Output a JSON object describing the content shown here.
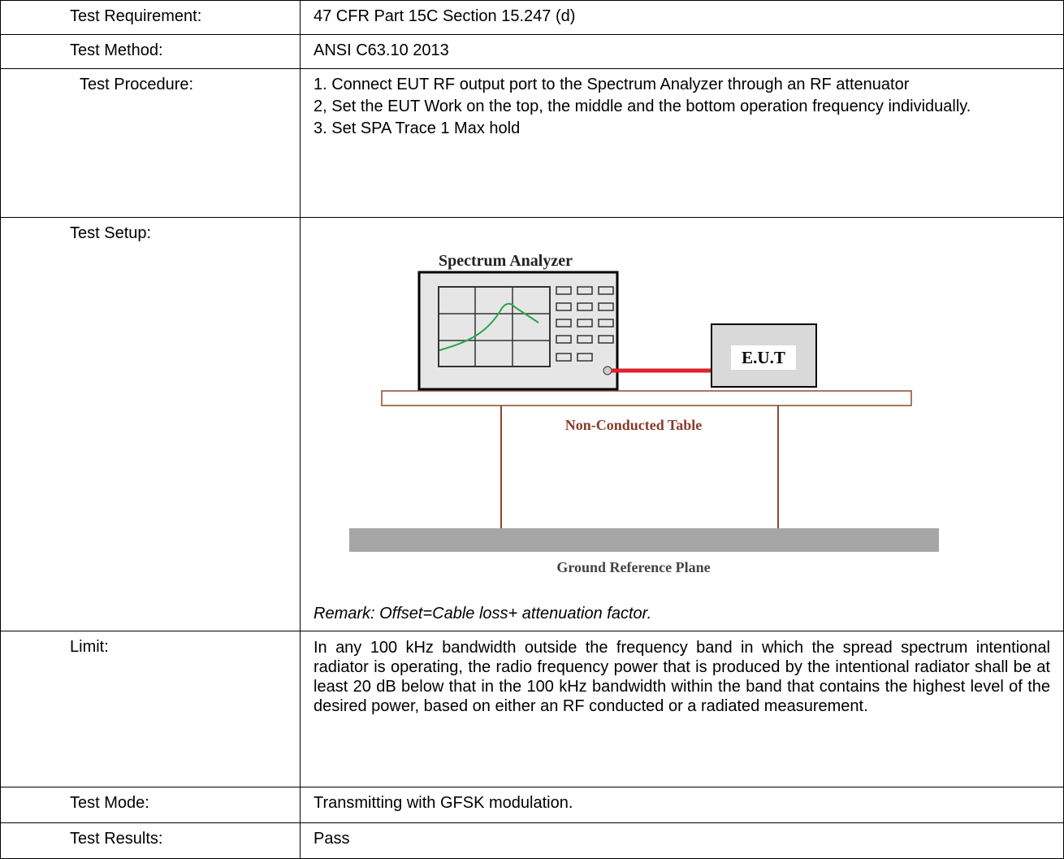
{
  "table": {
    "rows": [
      {
        "label": "Test Requirement:",
        "value": "47 CFR Part 15C Section 15.247 (d)"
      },
      {
        "label": "Test Method:",
        "value": "ANSI C63.10 2013"
      },
      {
        "label": "Test Procedure:",
        "steps": [
          "1. Connect EUT RF output port to the Spectrum Analyzer through an RF attenuator",
          "2, Set the EUT Work on the top, the middle and the bottom operation frequency individually.",
          "3. Set SPA Trace 1 Max hold"
        ]
      },
      {
        "label": "Test Setup:",
        "diagram": {
          "analyzer": "Spectrum Analyzer",
          "eut": "E.U.T",
          "table": "Non-Conducted Table",
          "ground": "Ground Reference Plane"
        },
        "remark": "Remark: Offset=Cable loss+ attenuation factor."
      },
      {
        "label": "Limit:",
        "value": "In any 100 kHz bandwidth outside the frequency band in which the spread spectrum intentional radiator is operating, the radio frequency power that is produced by the intentional radiator shall be at least 20 dB below that in the 100 kHz bandwidth within the band that contains the highest level of the desired power, based on either an RF conducted or a radiated measurement."
      },
      {
        "label": "Test Mode:",
        "value": "Transmitting with GFSK modulation."
      },
      {
        "label": "Test Results:",
        "value": "Pass"
      }
    ]
  }
}
